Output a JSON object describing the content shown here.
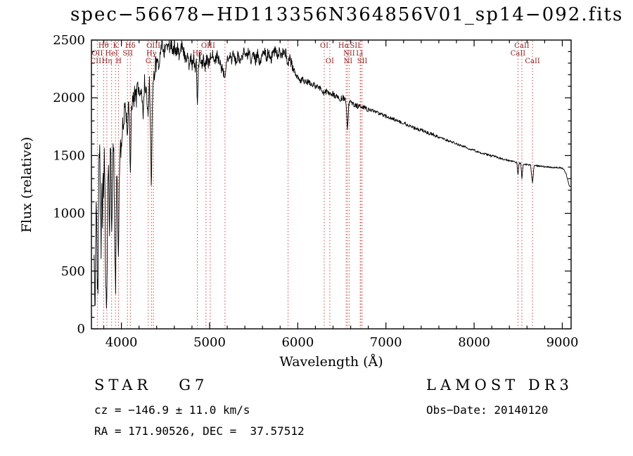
{
  "title": "spec−56678−HD113356N364856V01_sp14−092.fits",
  "chart_data": {
    "type": "line",
    "title": "spec−56678−HD113356N364856V01_sp14−092.fits",
    "xlabel": "Wavelength (Å)",
    "ylabel": "Flux (relative)",
    "xlim": [
      3660,
      9100
    ],
    "ylim": [
      0,
      2500
    ],
    "x_ticks": [
      4000,
      5000,
      6000,
      7000,
      8000,
      9000
    ],
    "y_ticks": [
      0,
      500,
      1000,
      1500,
      2000,
      2500
    ],
    "x_minor_step": 200,
    "y_minor_step": 100,
    "grid": false,
    "legend": "none",
    "line_color": "#000000",
    "spectrum": {
      "sample_step": 4,
      "seed": 20140120,
      "noise_segments": [
        {
          "to": 4000,
          "amp": 120
        },
        {
          "to": 4400,
          "amp": 80
        },
        {
          "to": 5000,
          "amp": 55
        },
        {
          "to": 5950,
          "amp": 48
        },
        {
          "to": 6800,
          "amp": 26
        },
        {
          "to": 7600,
          "amp": 16
        },
        {
          "to": 8400,
          "amp": 10
        },
        {
          "to": 9100,
          "amp": 7
        }
      ],
      "control_points": [
        [
          3690,
          620
        ],
        [
          3696,
          200
        ],
        [
          3702,
          150
        ],
        [
          3710,
          950
        ],
        [
          3718,
          1060
        ],
        [
          3726,
          430
        ],
        [
          3733,
          300
        ],
        [
          3740,
          1150
        ],
        [
          3748,
          1560
        ],
        [
          3756,
          1470
        ],
        [
          3763,
          1000
        ],
        [
          3770,
          650
        ],
        [
          3778,
          1320
        ],
        [
          3785,
          860
        ],
        [
          3792,
          1450
        ],
        [
          3798,
          1080
        ],
        [
          3806,
          1470
        ],
        [
          3813,
          1210
        ],
        [
          3820,
          500
        ],
        [
          3828,
          270
        ],
        [
          3835,
          240
        ],
        [
          3843,
          1050
        ],
        [
          3850,
          1380
        ],
        [
          3858,
          1230
        ],
        [
          3865,
          820
        ],
        [
          3873,
          1490
        ],
        [
          3881,
          1550
        ],
        [
          3889,
          640
        ],
        [
          3897,
          1300
        ],
        [
          3905,
          1610
        ],
        [
          3913,
          1550
        ],
        [
          3920,
          1030
        ],
        [
          3927,
          650
        ],
        [
          3934,
          310
        ],
        [
          3942,
          1170
        ],
        [
          3950,
          1270
        ],
        [
          3960,
          900
        ],
        [
          3968,
          530
        ],
        [
          3976,
          1370
        ],
        [
          3985,
          1520
        ],
        [
          3993,
          1590
        ],
        [
          4002,
          1640
        ],
        [
          4012,
          1770
        ],
        [
          4022,
          1690
        ],
        [
          4032,
          1890
        ],
        [
          4044,
          1970
        ],
        [
          4056,
          1840
        ],
        [
          4068,
          1700
        ],
        [
          4080,
          1940
        ],
        [
          4090,
          1870
        ],
        [
          4101,
          1320
        ],
        [
          4112,
          1890
        ],
        [
          4126,
          1990
        ],
        [
          4140,
          1970
        ],
        [
          4155,
          2050
        ],
        [
          4170,
          1980
        ],
        [
          4185,
          2100
        ],
        [
          4200,
          2030
        ],
        [
          4215,
          2110
        ],
        [
          4230,
          2050
        ],
        [
          4245,
          1810
        ],
        [
          4260,
          2130
        ],
        [
          4275,
          2070
        ],
        [
          4290,
          1970
        ],
        [
          4304,
          1880
        ],
        [
          4318,
          2110
        ],
        [
          4330,
          1720
        ],
        [
          4340,
          1160
        ],
        [
          4352,
          2050
        ],
        [
          4364,
          2140
        ],
        [
          4380,
          2250
        ],
        [
          4400,
          2310
        ],
        [
          4420,
          2270
        ],
        [
          4440,
          2390
        ],
        [
          4460,
          2450
        ],
        [
          4480,
          2370
        ],
        [
          4500,
          2470
        ],
        [
          4516,
          2410
        ],
        [
          4532,
          2490
        ],
        [
          4550,
          2430
        ],
        [
          4568,
          2480
        ],
        [
          4586,
          2390
        ],
        [
          4604,
          2460
        ],
        [
          4622,
          2370
        ],
        [
          4640,
          2440
        ],
        [
          4658,
          2340
        ],
        [
          4676,
          2420
        ],
        [
          4694,
          2460
        ],
        [
          4712,
          2380
        ],
        [
          4730,
          2320
        ],
        [
          4748,
          2400
        ],
        [
          4766,
          2290
        ],
        [
          4784,
          2370
        ],
        [
          4802,
          2270
        ],
        [
          4820,
          2350
        ],
        [
          4838,
          2250
        ],
        [
          4850,
          2300
        ],
        [
          4861,
          1960
        ],
        [
          4875,
          2300
        ],
        [
          4890,
          2360
        ],
        [
          4910,
          2290
        ],
        [
          4930,
          2350
        ],
        [
          4950,
          2280
        ],
        [
          4970,
          2340
        ],
        [
          4990,
          2290
        ],
        [
          5010,
          2350
        ],
        [
          5035,
          2400
        ],
        [
          5060,
          2310
        ],
        [
          5085,
          2370
        ],
        [
          5110,
          2300
        ],
        [
          5135,
          2260
        ],
        [
          5160,
          2220
        ],
        [
          5175,
          2170
        ],
        [
          5195,
          2320
        ],
        [
          5220,
          2390
        ],
        [
          5245,
          2320
        ],
        [
          5270,
          2380
        ],
        [
          5295,
          2310
        ],
        [
          5320,
          2370
        ],
        [
          5345,
          2300
        ],
        [
          5370,
          2360
        ],
        [
          5395,
          2410
        ],
        [
          5420,
          2340
        ],
        [
          5445,
          2400
        ],
        [
          5470,
          2330
        ],
        [
          5495,
          2390
        ],
        [
          5520,
          2320
        ],
        [
          5545,
          2380
        ],
        [
          5570,
          2310
        ],
        [
          5595,
          2370
        ],
        [
          5620,
          2420
        ],
        [
          5645,
          2350
        ],
        [
          5670,
          2400
        ],
        [
          5695,
          2330
        ],
        [
          5720,
          2390
        ],
        [
          5745,
          2420
        ],
        [
          5770,
          2360
        ],
        [
          5795,
          2410
        ],
        [
          5820,
          2370
        ],
        [
          5845,
          2420
        ],
        [
          5870,
          2360
        ],
        [
          5890,
          2290
        ],
        [
          5910,
          2350
        ],
        [
          5930,
          2290
        ],
        [
          5955,
          2240
        ],
        [
          5980,
          2200
        ],
        [
          6005,
          2180
        ],
        [
          6030,
          2150
        ],
        [
          6060,
          2160
        ],
        [
          6090,
          2130
        ],
        [
          6120,
          2140
        ],
        [
          6150,
          2110
        ],
        [
          6180,
          2120
        ],
        [
          6210,
          2090
        ],
        [
          6240,
          2100
        ],
        [
          6270,
          2070
        ],
        [
          6300,
          2030
        ],
        [
          6330,
          2060
        ],
        [
          6363,
          2020
        ],
        [
          6395,
          2040
        ],
        [
          6425,
          2010
        ],
        [
          6455,
          2020
        ],
        [
          6485,
          1990
        ],
        [
          6515,
          2000
        ],
        [
          6548,
          1960
        ],
        [
          6563,
          1720
        ],
        [
          6580,
          1950
        ],
        [
          6600,
          1960
        ],
        [
          6625,
          1940
        ],
        [
          6650,
          1950
        ],
        [
          6675,
          1930
        ],
        [
          6700,
          1920
        ],
        [
          6725,
          1930
        ],
        [
          6750,
          1910
        ],
        [
          6780,
          1905
        ],
        [
          6820,
          1895
        ],
        [
          6860,
          1885
        ],
        [
          6900,
          1870
        ],
        [
          6940,
          1860
        ],
        [
          6980,
          1845
        ],
        [
          7020,
          1835
        ],
        [
          7060,
          1820
        ],
        [
          7100,
          1810
        ],
        [
          7140,
          1795
        ],
        [
          7180,
          1785
        ],
        [
          7220,
          1775
        ],
        [
          7260,
          1760
        ],
        [
          7300,
          1750
        ],
        [
          7340,
          1735
        ],
        [
          7380,
          1725
        ],
        [
          7420,
          1715
        ],
        [
          7460,
          1700
        ],
        [
          7500,
          1690
        ],
        [
          7540,
          1680
        ],
        [
          7580,
          1665
        ],
        [
          7620,
          1655
        ],
        [
          7660,
          1645
        ],
        [
          7700,
          1630
        ],
        [
          7740,
          1620
        ],
        [
          7780,
          1610
        ],
        [
          7820,
          1595
        ],
        [
          7860,
          1585
        ],
        [
          7900,
          1575
        ],
        [
          7940,
          1560
        ],
        [
          7980,
          1550
        ],
        [
          8020,
          1540
        ],
        [
          8060,
          1530
        ],
        [
          8100,
          1520
        ],
        [
          8140,
          1510
        ],
        [
          8180,
          1500
        ],
        [
          8220,
          1495
        ],
        [
          8260,
          1485
        ],
        [
          8300,
          1475
        ],
        [
          8340,
          1468
        ],
        [
          8380,
          1460
        ],
        [
          8420,
          1452
        ],
        [
          8460,
          1445
        ],
        [
          8485,
          1440
        ],
        [
          8498,
          1330
        ],
        [
          8512,
          1438
        ],
        [
          8530,
          1432
        ],
        [
          8542,
          1300
        ],
        [
          8558,
          1428
        ],
        [
          8580,
          1425
        ],
        [
          8610,
          1420
        ],
        [
          8640,
          1418
        ],
        [
          8662,
          1260
        ],
        [
          8680,
          1415
        ],
        [
          8710,
          1412
        ],
        [
          8745,
          1408
        ],
        [
          8780,
          1405
        ],
        [
          8815,
          1402
        ],
        [
          8850,
          1400
        ],
        [
          8885,
          1398
        ],
        [
          8920,
          1396
        ],
        [
          8950,
          1395
        ],
        [
          8980,
          1393
        ],
        [
          9000,
          1390
        ],
        [
          9020,
          1380
        ],
        [
          9045,
          1340
        ],
        [
          9065,
          1280
        ],
        [
          9080,
          1240
        ],
        [
          9095,
          1230
        ]
      ]
    }
  },
  "spectral_lines": {
    "line_color": "#cc4440",
    "label_color": "#8b1e1e",
    "lines": [
      3727,
      3798,
      3835,
      3889,
      3933,
      3968,
      4068,
      4101,
      4304,
      4340,
      4363,
      4861,
      4959,
      5007,
      5175,
      5890,
      6300,
      6363,
      6548,
      6563,
      6583,
      6708,
      6716,
      6731,
      8498,
      8542,
      8662
    ],
    "labels": [
      {
        "text": "Hθ",
        "wl": 3798,
        "row": 0
      },
      {
        "text": "K",
        "wl": 3933,
        "row": 0
      },
      {
        "text": "Hδ",
        "wl": 4101,
        "row": 0
      },
      {
        "text": "OIII",
        "wl": 4363,
        "row": 0
      },
      {
        "text": "OIII",
        "wl": 4983,
        "row": 0
      },
      {
        "text": "OI",
        "wl": 6300,
        "row": 0
      },
      {
        "text": "Hα",
        "wl": 6520,
        "row": 0
      },
      {
        "text": "SII",
        "wl": 6650,
        "row": 0
      },
      {
        "text": "CaII",
        "wl": 8542,
        "row": 0
      },
      {
        "text": "OII",
        "wl": 3727,
        "row": 1
      },
      {
        "text": "HeI",
        "wl": 3889,
        "row": 1
      },
      {
        "text": "SII",
        "wl": 4072,
        "row": 1
      },
      {
        "text": "Hγ",
        "wl": 4340,
        "row": 1
      },
      {
        "text": "Hβ",
        "wl": 4861,
        "row": 1
      },
      {
        "text": "NII",
        "wl": 6583,
        "row": 1
      },
      {
        "text": "Li",
        "wl": 6700,
        "row": 1
      },
      {
        "text": "CaII",
        "wl": 8498,
        "row": 1
      },
      {
        "text": "CII",
        "wl": 3710,
        "row": 2
      },
      {
        "text": "Hη",
        "wl": 3835,
        "row": 2
      },
      {
        "text": "H",
        "wl": 3968,
        "row": 2
      },
      {
        "text": "G",
        "wl": 4304,
        "row": 2
      },
      {
        "text": "OI",
        "wl": 6363,
        "row": 2
      },
      {
        "text": "NI",
        "wl": 6570,
        "row": 2
      },
      {
        "text": "SII",
        "wl": 6731,
        "row": 2
      },
      {
        "text": "CaII",
        "wl": 8662,
        "row": 2
      }
    ]
  },
  "footer": {
    "class_line": "STAR   G7",
    "survey": "LAMOST DR3",
    "cz": "cz = −146.9 ± 11.0 km/s",
    "obs_date": "Obs−Date: 20140120",
    "radec": "RA = 171.90526, DEC =  37.57512"
  }
}
